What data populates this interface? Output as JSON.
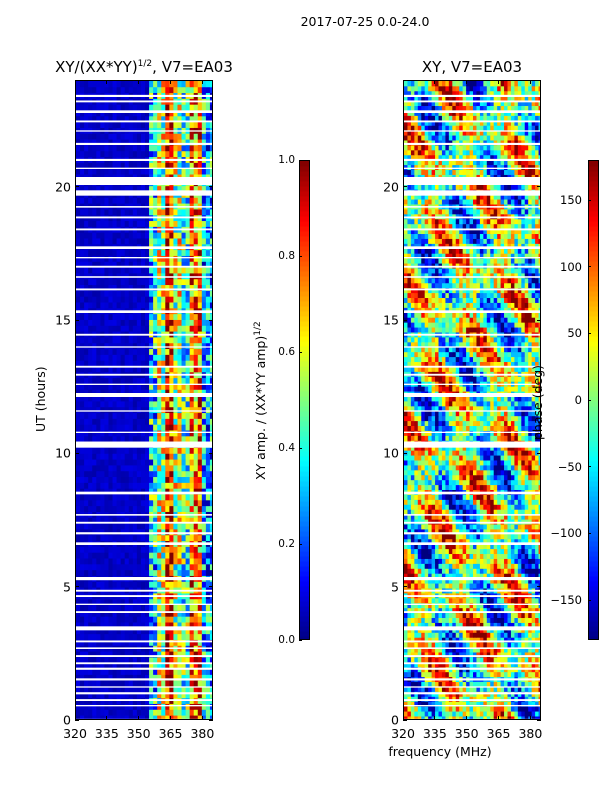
{
  "chart_data": {
    "suptitle": "2017-07-25 0.0-24.0",
    "xlabel": "frequency (MHz)",
    "colors": {
      "jet": [
        "#00007f",
        "#0000ff",
        "#007fff",
        "#00ffff",
        "#7fff7f",
        "#ffff00",
        "#ff7f00",
        "#ff0000",
        "#7f0000"
      ],
      "flag": "#ffffff"
    },
    "panels": [
      {
        "type": "heatmap",
        "title_main": "XY/(XX*YY)",
        "title_sup": "1/2",
        "title_rest": ", V7=EA03",
        "ylabel": "UT (hours)",
        "xlim": [
          320,
          385
        ],
        "ylim": [
          0,
          24
        ],
        "xticks": [
          320,
          335,
          350,
          365,
          380
        ],
        "xtick_labels": [
          "320",
          "335",
          "350",
          "365",
          "380"
        ],
        "yticks": [
          0,
          5,
          10,
          15,
          20
        ],
        "ytick_labels": [
          "0",
          "5",
          "10",
          "15",
          "20"
        ],
        "colorbar": {
          "label_main": "XY amp. / (XX*YY amp)",
          "label_sup": "1/2",
          "range": [
            0.0,
            1.0
          ],
          "ticks": [
            0.0,
            0.2,
            0.4,
            0.6,
            0.8,
            1.0
          ],
          "tick_labels": [
            "0.0",
            "0.2",
            "0.4",
            "0.6",
            "0.8",
            "1.0"
          ]
        }
      },
      {
        "type": "heatmap",
        "title": "XY, V7=EA03",
        "xlim": [
          320,
          385
        ],
        "ylim": [
          0,
          24
        ],
        "xticks": [
          320,
          335,
          350,
          365,
          380
        ],
        "xtick_labels": [
          "320",
          "335",
          "350",
          "365",
          "380"
        ],
        "yticks": [
          0,
          5,
          10,
          15,
          20
        ],
        "ytick_labels": [
          "0",
          "5",
          "10",
          "15",
          "20"
        ],
        "colorbar": {
          "label": "phase (deg)",
          "range": [
            -180,
            180
          ],
          "ticks": [
            -150,
            -100,
            -50,
            0,
            50,
            100,
            150
          ],
          "tick_labels": [
            "−150",
            "−100",
            "−50",
            "0",
            "50",
            "100",
            "150"
          ]
        }
      }
    ],
    "flagged_time_ranges_hours": [
      [
        0.0,
        0.08
      ],
      [
        0.55,
        0.6
      ],
      [
        0.75,
        0.82
      ],
      [
        1.0,
        1.08
      ],
      [
        1.25,
        1.3
      ],
      [
        1.52,
        1.6
      ],
      [
        1.92,
        2.0
      ],
      [
        2.13,
        2.2
      ],
      [
        2.4,
        2.47
      ],
      [
        2.7,
        2.76
      ],
      [
        2.95,
        3.02
      ],
      [
        3.4,
        3.55
      ],
      [
        4.05,
        4.12
      ],
      [
        4.35,
        4.4
      ],
      [
        4.65,
        4.72
      ],
      [
        4.85,
        4.92
      ],
      [
        5.28,
        5.4
      ],
      [
        6.6,
        6.7
      ],
      [
        7.0,
        7.08
      ],
      [
        7.4,
        7.47
      ],
      [
        7.7,
        7.76
      ],
      [
        8.5,
        8.6
      ],
      [
        10.25,
        10.48
      ],
      [
        10.8,
        10.85
      ],
      [
        11.6,
        11.65
      ],
      [
        12.15,
        12.3
      ],
      [
        12.6,
        12.65
      ],
      [
        12.95,
        13.02
      ],
      [
        13.25,
        13.32
      ],
      [
        14.0,
        14.05
      ],
      [
        14.45,
        14.52
      ],
      [
        15.3,
        15.4
      ],
      [
        16.15,
        16.22
      ],
      [
        16.62,
        16.68
      ],
      [
        17.0,
        17.07
      ],
      [
        17.35,
        17.4
      ],
      [
        17.7,
        17.8
      ],
      [
        18.4,
        18.47
      ],
      [
        18.85,
        18.92
      ],
      [
        19.25,
        19.31
      ],
      [
        19.7,
        19.9
      ],
      [
        20.1,
        20.4
      ],
      [
        20.7,
        20.75
      ],
      [
        21.0,
        21.08
      ],
      [
        21.6,
        21.68
      ],
      [
        22.1,
        22.15
      ],
      [
        22.45,
        22.52
      ],
      [
        22.8,
        22.9
      ],
      [
        23.2,
        23.27
      ],
      [
        23.4,
        23.48
      ]
    ],
    "amplitude_band_profile_mhz": [
      {
        "from": 320,
        "to": 355,
        "amp": 0.04
      },
      {
        "from": 355,
        "to": 358,
        "amp": 0.35
      },
      {
        "from": 358,
        "to": 362,
        "amp": 0.55
      },
      {
        "from": 362,
        "to": 366,
        "amp": 0.85
      },
      {
        "from": 366,
        "to": 370,
        "amp": 0.55
      },
      {
        "from": 370,
        "to": 374,
        "amp": 0.45
      },
      {
        "from": 374,
        "to": 379,
        "amp": 0.75
      },
      {
        "from": 379,
        "to": 385,
        "amp": 0.3
      }
    ]
  }
}
